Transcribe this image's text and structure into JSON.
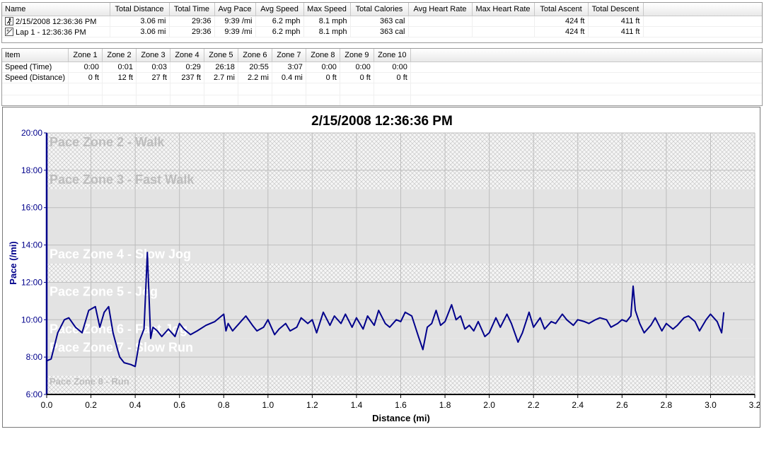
{
  "summary": {
    "columns": [
      "Name",
      "Total Distance",
      "Total Time",
      "Avg Pace",
      "Avg Speed",
      "Max Speed",
      "Total Calories",
      "Avg Heart Rate",
      "Max Heart Rate",
      "Total Ascent",
      "Total Descent"
    ],
    "rows": [
      {
        "icon": "run-activity-icon",
        "cells": [
          "2/15/2008 12:36:36 PM",
          "3.06 mi",
          "29:36",
          "9:39 /mi",
          "6.2 mph",
          "8.1 mph",
          "363 cal",
          "",
          "",
          "424 ft",
          "411 ft"
        ]
      },
      {
        "icon": "lap-icon",
        "cells": [
          "Lap 1 - 12:36:36 PM",
          "3.06 mi",
          "29:36",
          "9:39 /mi",
          "6.2 mph",
          "8.1 mph",
          "363 cal",
          "",
          "",
          "424 ft",
          "411 ft"
        ]
      }
    ]
  },
  "zones": {
    "columns": [
      "Item",
      "Zone 1",
      "Zone 2",
      "Zone 3",
      "Zone 4",
      "Zone 5",
      "Zone 6",
      "Zone 7",
      "Zone 8",
      "Zone 9",
      "Zone 10"
    ],
    "rows": [
      [
        "Speed (Time)",
        "0:00",
        "0:01",
        "0:03",
        "0:29",
        "26:18",
        "20:55",
        "3:07",
        "0:00",
        "0:00",
        "0:00"
      ],
      [
        "Speed (Distance)",
        "0 ft",
        "12 ft",
        "27 ft",
        "237 ft",
        "2.7 mi",
        "2.2 mi",
        "0.4 mi",
        "0 ft",
        "0 ft",
        "0 ft"
      ]
    ]
  },
  "chart_data": {
    "type": "line",
    "title": "2/15/2008 12:36:36 PM",
    "xlabel": "Distance (mi)",
    "ylabel": "Pace (/mi)",
    "xlim": [
      0.0,
      3.2
    ],
    "ylim_minutes": [
      6,
      20
    ],
    "x_ticks": [
      "0.0",
      "0.2",
      "0.4",
      "0.6",
      "0.8",
      "1.0",
      "1.2",
      "1.4",
      "1.6",
      "1.8",
      "2.0",
      "2.2",
      "2.4",
      "2.6",
      "2.8",
      "3.0",
      "3.2"
    ],
    "y_ticks": [
      "6:00",
      "8:00",
      "10:00",
      "12:00",
      "14:00",
      "16:00",
      "18:00",
      "20:00"
    ],
    "grid": true,
    "zone_bands": [
      {
        "label": "Pace Zone 2 - Walk",
        "from": 18,
        "to": 20,
        "style": "hatch"
      },
      {
        "label": "Pace Zone 3 - Fast Walk",
        "from": 17,
        "to": 18,
        "style": "hatch"
      },
      {
        "label": "",
        "from": 14,
        "to": 17,
        "style": "solid"
      },
      {
        "label": "Pace Zone 4 - Slow Jog",
        "from": 13,
        "to": 14,
        "style": "solid"
      },
      {
        "label": "",
        "from": 12,
        "to": 13,
        "style": "hatch"
      },
      {
        "label": "Pace Zone 5 - Jog",
        "from": 10,
        "to": 12,
        "style": "solid"
      },
      {
        "label": "Pace Zone 6 - Fast Jog",
        "from": 9,
        "to": 10,
        "style": "solid"
      },
      {
        "label": "Pace Zone 7 - Slow Run",
        "from": 8,
        "to": 9,
        "style": "solid"
      },
      {
        "label": "Pace Zone 8 - Run",
        "from": 6,
        "to": 7,
        "style": "hatch"
      },
      {
        "label": "",
        "from": 7,
        "to": 8,
        "style": "solid"
      }
    ],
    "series": [
      {
        "color": "#00008b",
        "x": [
          0.0,
          0.02,
          0.05,
          0.08,
          0.1,
          0.13,
          0.16,
          0.19,
          0.22,
          0.24,
          0.26,
          0.28,
          0.3,
          0.32,
          0.33,
          0.35,
          0.38,
          0.4,
          0.42,
          0.44,
          0.455,
          0.46,
          0.47,
          0.48,
          0.5,
          0.52,
          0.55,
          0.58,
          0.6,
          0.62,
          0.65,
          0.68,
          0.72,
          0.76,
          0.8,
          0.81,
          0.82,
          0.84,
          0.87,
          0.9,
          0.93,
          0.95,
          0.98,
          1.0,
          1.03,
          1.05,
          1.08,
          1.1,
          1.13,
          1.15,
          1.18,
          1.2,
          1.22,
          1.25,
          1.28,
          1.3,
          1.33,
          1.35,
          1.38,
          1.4,
          1.43,
          1.45,
          1.48,
          1.5,
          1.53,
          1.55,
          1.58,
          1.6,
          1.62,
          1.65,
          1.68,
          1.7,
          1.72,
          1.74,
          1.76,
          1.78,
          1.8,
          1.83,
          1.85,
          1.87,
          1.89,
          1.91,
          1.93,
          1.95,
          1.98,
          2.0,
          2.03,
          2.05,
          2.08,
          2.1,
          2.13,
          2.15,
          2.18,
          2.2,
          2.23,
          2.25,
          2.28,
          2.3,
          2.33,
          2.35,
          2.38,
          2.4,
          2.43,
          2.45,
          2.48,
          2.5,
          2.53,
          2.55,
          2.58,
          2.6,
          2.62,
          2.64,
          2.65,
          2.66,
          2.68,
          2.7,
          2.73,
          2.75,
          2.78,
          2.8,
          2.83,
          2.85,
          2.88,
          2.9,
          2.93,
          2.95,
          2.98,
          3.0,
          3.03,
          3.05,
          3.06
        ],
        "y": [
          7.8,
          7.9,
          9.3,
          10.0,
          10.1,
          9.6,
          9.3,
          10.5,
          10.7,
          9.6,
          10.4,
          10.7,
          9.3,
          8.4,
          8.0,
          7.7,
          7.6,
          7.5,
          8.9,
          9.5,
          13.6,
          12.0,
          9.0,
          9.6,
          9.4,
          9.1,
          9.5,
          9.1,
          9.8,
          9.5,
          9.2,
          9.4,
          9.7,
          9.9,
          10.3,
          9.4,
          9.8,
          9.4,
          9.8,
          10.2,
          9.7,
          9.4,
          9.6,
          10.0,
          9.2,
          9.5,
          9.8,
          9.4,
          9.6,
          10.1,
          9.8,
          10.0,
          9.3,
          10.4,
          9.7,
          10.2,
          9.8,
          10.3,
          9.6,
          10.1,
          9.5,
          10.2,
          9.7,
          10.5,
          9.8,
          9.6,
          10.0,
          9.9,
          10.4,
          10.2,
          9.1,
          8.4,
          9.6,
          9.8,
          10.5,
          9.7,
          9.9,
          10.8,
          10.0,
          10.2,
          9.5,
          9.7,
          9.4,
          9.9,
          9.1,
          9.3,
          10.1,
          9.6,
          10.3,
          9.8,
          8.8,
          9.3,
          10.4,
          9.6,
          10.1,
          9.5,
          9.9,
          9.8,
          10.3,
          10.0,
          9.7,
          10.0,
          9.9,
          9.8,
          10.0,
          10.1,
          10.0,
          9.6,
          9.8,
          10.0,
          9.9,
          10.2,
          11.8,
          10.5,
          9.8,
          9.3,
          9.7,
          10.1,
          9.4,
          9.8,
          9.5,
          9.7,
          10.1,
          10.2,
          9.9,
          9.4,
          10.0,
          10.3,
          9.9,
          9.3,
          10.4
        ]
      }
    ]
  }
}
